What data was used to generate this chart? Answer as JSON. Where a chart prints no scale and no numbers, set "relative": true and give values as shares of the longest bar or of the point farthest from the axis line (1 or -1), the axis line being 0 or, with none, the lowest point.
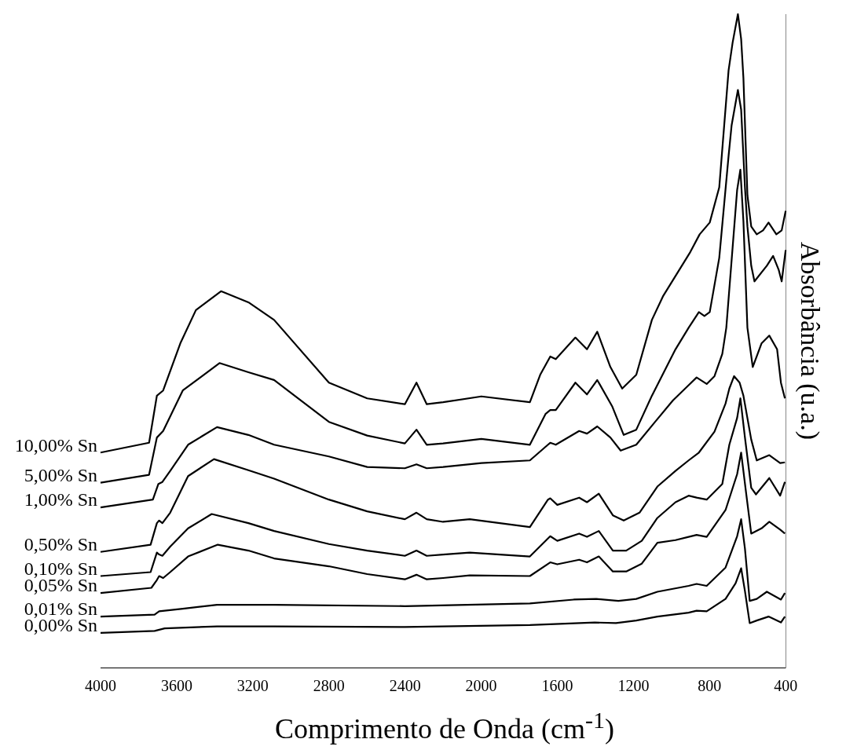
{
  "chart_data": {
    "type": "line",
    "relative": true,
    "xlabel": "Comprimento de Onda (cm$^{-1}$)",
    "ylabel": "Absorbância (u.a.)",
    "xlim": [
      4000,
      400
    ],
    "xticks": [
      4000,
      3600,
      3200,
      2800,
      2400,
      2000,
      1600,
      1200,
      800,
      400
    ],
    "marker": "none",
    "line_style": "solid",
    "series": [
      {
        "name": "10,00% Sn",
        "color": "#000000",
        "x": [
          4000,
          3745,
          3704,
          3671,
          3581,
          3499,
          3367,
          3223,
          3088,
          2800,
          2599,
          2401,
          2340,
          2286,
          2200,
          1999,
          1744,
          1690,
          1637,
          1608,
          1505,
          1444,
          1390,
          1321,
          1259,
          1185,
          1103,
          1045,
          901,
          852,
          799,
          749,
          700,
          679,
          651,
          634,
          622,
          601,
          581,
          552,
          519,
          490,
          449,
          421,
          400
        ],
        "values": [
          0.329,
          0.344,
          0.416,
          0.424,
          0.496,
          0.547,
          0.576,
          0.559,
          0.532,
          0.436,
          0.412,
          0.403,
          0.436,
          0.403,
          0.406,
          0.415,
          0.406,
          0.448,
          0.476,
          0.472,
          0.505,
          0.487,
          0.514,
          0.46,
          0.427,
          0.448,
          0.532,
          0.568,
          0.636,
          0.663,
          0.681,
          0.735,
          0.914,
          0.956,
          1,
          0.962,
          0.902,
          0.723,
          0.675,
          0.663,
          0.669,
          0.681,
          0.663,
          0.669,
          0.699
        ]
      },
      {
        "name": "5,00% Sn",
        "color": "#000000",
        "x": [
          4000,
          3745,
          3704,
          3671,
          3568,
          3375,
          3223,
          3088,
          2800,
          2599,
          2401,
          2340,
          2286,
          2200,
          1999,
          1744,
          1662,
          1637,
          1608,
          1505,
          1444,
          1390,
          1312,
          1251,
          1185,
          1103,
          979,
          910,
          856,
          827,
          799,
          749,
          700,
          684,
          651,
          634,
          614,
          601,
          581,
          564,
          499,
          466,
          437,
          421,
          400
        ],
        "values": [
          0.283,
          0.295,
          0.352,
          0.362,
          0.424,
          0.466,
          0.452,
          0.44,
          0.376,
          0.355,
          0.343,
          0.364,
          0.341,
          0.343,
          0.35,
          0.341,
          0.388,
          0.394,
          0.394,
          0.436,
          0.418,
          0.44,
          0.4,
          0.356,
          0.364,
          0.416,
          0.487,
          0.52,
          0.544,
          0.538,
          0.544,
          0.627,
          0.783,
          0.83,
          0.884,
          0.854,
          0.735,
          0.675,
          0.615,
          0.591,
          0.615,
          0.63,
          0.609,
          0.591,
          0.639
        ]
      },
      {
        "name": "1,00% Sn",
        "color": "#000000",
        "x": [
          4000,
          3725,
          3696,
          3675,
          3634,
          3540,
          3388,
          3223,
          3088,
          2800,
          2599,
          2401,
          2340,
          2286,
          2200,
          1999,
          1744,
          1649,
          1637,
          1608,
          1485,
          1444,
          1390,
          1321,
          1267,
          1185,
          1086,
          992,
          910,
          868,
          815,
          774,
          733,
          712,
          655,
          638,
          622,
          601,
          573,
          527,
          486,
          445,
          425,
          404
        ],
        "values": [
          0.245,
          0.257,
          0.281,
          0.284,
          0.301,
          0.341,
          0.368,
          0.356,
          0.341,
          0.323,
          0.307,
          0.305,
          0.311,
          0.305,
          0.307,
          0.313,
          0.317,
          0.341,
          0.344,
          0.341,
          0.362,
          0.358,
          0.369,
          0.352,
          0.332,
          0.341,
          0.376,
          0.409,
          0.432,
          0.444,
          0.434,
          0.446,
          0.48,
          0.52,
          0.731,
          0.762,
          0.683,
          0.52,
          0.46,
          0.496,
          0.508,
          0.487,
          0.436,
          0.412
        ]
      },
      {
        "name": "0,50% Sn",
        "color": "#000000",
        "x": [
          4000,
          3737,
          3704,
          3692,
          3675,
          3634,
          3540,
          3404,
          3223,
          3088,
          2800,
          2599,
          2401,
          2340,
          2286,
          2200,
          2060,
          1744,
          1649,
          1637,
          1600,
          1485,
          1444,
          1382,
          1308,
          1251,
          1168,
          1074,
          979,
          910,
          856,
          774,
          716,
          696,
          671,
          642,
          622,
          581,
          552,
          486,
          429,
          404
        ],
        "values": [
          0.177,
          0.188,
          0.221,
          0.225,
          0.221,
          0.237,
          0.293,
          0.319,
          0.302,
          0.289,
          0.257,
          0.239,
          0.227,
          0.237,
          0.227,
          0.223,
          0.227,
          0.215,
          0.257,
          0.259,
          0.249,
          0.26,
          0.253,
          0.266,
          0.233,
          0.225,
          0.237,
          0.277,
          0.301,
          0.317,
          0.329,
          0.361,
          0.404,
          0.427,
          0.446,
          0.436,
          0.416,
          0.349,
          0.317,
          0.325,
          0.313,
          0.314
        ]
      },
      {
        "name": "0,10% Sn",
        "color": "#000000",
        "x": [
          4000,
          3737,
          3704,
          3692,
          3675,
          3634,
          3540,
          3416,
          3223,
          3088,
          2800,
          2599,
          2401,
          2340,
          2286,
          2200,
          2060,
          1744,
          1637,
          1600,
          1485,
          1444,
          1382,
          1308,
          1238,
          1156,
          1074,
          979,
          910,
          868,
          815,
          733,
          696,
          655,
          638,
          614,
          581,
          556,
          486,
          429,
          404
        ],
        "values": [
          0.14,
          0.146,
          0.176,
          0.173,
          0.171,
          0.185,
          0.213,
          0.235,
          0.221,
          0.209,
          0.189,
          0.179,
          0.171,
          0.179,
          0.171,
          0.173,
          0.176,
          0.17,
          0.201,
          0.194,
          0.205,
          0.2,
          0.209,
          0.179,
          0.179,
          0.194,
          0.229,
          0.253,
          0.263,
          0.26,
          0.257,
          0.281,
          0.341,
          0.382,
          0.412,
          0.352,
          0.275,
          0.265,
          0.29,
          0.263,
          0.284
        ]
      },
      {
        "name": "0,05% Sn",
        "color": "#000000",
        "x": [
          4000,
          3733,
          3704,
          3692,
          3671,
          3634,
          3540,
          3384,
          3223,
          3088,
          2800,
          2599,
          2401,
          2340,
          2286,
          2200,
          2060,
          1744,
          1637,
          1600,
          1485,
          1444,
          1382,
          1308,
          1238,
          1156,
          1074,
          979,
          910,
          868,
          815,
          716,
          655,
          634,
          610,
          581,
          527,
          486,
          429,
          404
        ],
        "values": [
          0.114,
          0.122,
          0.134,
          0.14,
          0.137,
          0.146,
          0.17,
          0.188,
          0.179,
          0.167,
          0.155,
          0.143,
          0.135,
          0.142,
          0.135,
          0.137,
          0.141,
          0.14,
          0.161,
          0.158,
          0.165,
          0.161,
          0.17,
          0.147,
          0.147,
          0.159,
          0.191,
          0.195,
          0.2,
          0.203,
          0.2,
          0.241,
          0.296,
          0.329,
          0.272,
          0.205,
          0.213,
          0.223,
          0.211,
          0.205
        ]
      },
      {
        "name": "0,01% Sn",
        "color": "#000000",
        "x": [
          4000,
          3716,
          3692,
          3568,
          3388,
          3088,
          2401,
          1744,
          1514,
          1395,
          1279,
          1185,
          1074,
          910,
          868,
          815,
          716,
          655,
          634,
          614,
          589,
          552,
          499,
          425,
          404
        ],
        "values": [
          0.078,
          0.081,
          0.086,
          0.09,
          0.096,
          0.096,
          0.094,
          0.098,
          0.104,
          0.105,
          0.102,
          0.105,
          0.116,
          0.125,
          0.128,
          0.125,
          0.153,
          0.201,
          0.227,
          0.182,
          0.102,
          0.105,
          0.116,
          0.104,
          0.114
        ]
      },
      {
        "name": "0,00% Sn",
        "color": "#000000",
        "x": [
          4000,
          3716,
          3663,
          3388,
          3088,
          2401,
          1744,
          1403,
          1292,
          1185,
          1074,
          910,
          868,
          815,
          716,
          663,
          634,
          614,
          589,
          552,
          490,
          425,
          404
        ],
        "values": [
          0.053,
          0.056,
          0.06,
          0.063,
          0.063,
          0.062,
          0.065,
          0.069,
          0.068,
          0.072,
          0.078,
          0.084,
          0.087,
          0.086,
          0.105,
          0.129,
          0.152,
          0.117,
          0.068,
          0.072,
          0.078,
          0.069,
          0.078
        ]
      }
    ]
  }
}
